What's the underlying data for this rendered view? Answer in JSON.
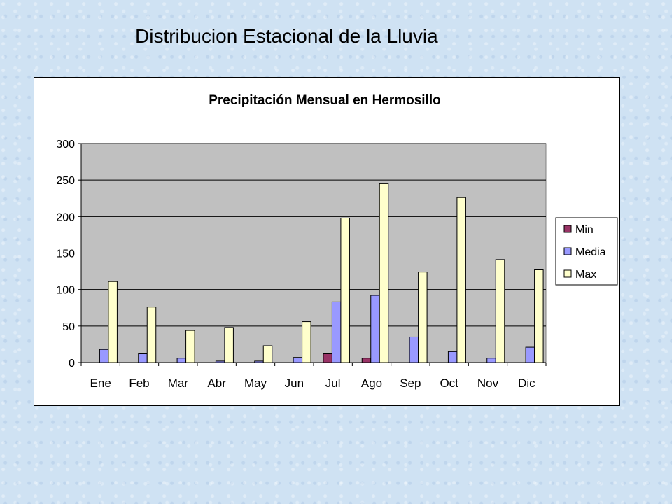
{
  "slide": {
    "title": "Distribucion Estacional de la Lluvia"
  },
  "chart_data": {
    "type": "bar",
    "title": "Precipitación Mensual en Hermosillo",
    "xlabel": "",
    "ylabel": "",
    "ylim": [
      0,
      300
    ],
    "yticks": [
      0,
      50,
      100,
      150,
      200,
      250,
      300
    ],
    "categories": [
      "Ene",
      "Feb",
      "Mar",
      "Abr",
      "May",
      "Jun",
      "Jul",
      "Ago",
      "Sep",
      "Oct",
      "Nov",
      "Dic"
    ],
    "series": [
      {
        "name": "Min",
        "color": "#993366",
        "values": [
          0,
          0,
          0,
          0,
          0,
          0,
          12,
          6,
          0,
          0,
          0,
          0
        ]
      },
      {
        "name": "Media",
        "color": "#9999ff",
        "values": [
          18,
          12,
          6,
          2,
          2,
          7,
          83,
          92,
          35,
          15,
          6,
          21
        ]
      },
      {
        "name": "Max",
        "color": "#ffffcc",
        "values": [
          111,
          76,
          44,
          48,
          23,
          56,
          198,
          245,
          124,
          226,
          141,
          127
        ]
      }
    ],
    "plot_background": "#c0c0c0",
    "grid": true,
    "legend": "right"
  }
}
